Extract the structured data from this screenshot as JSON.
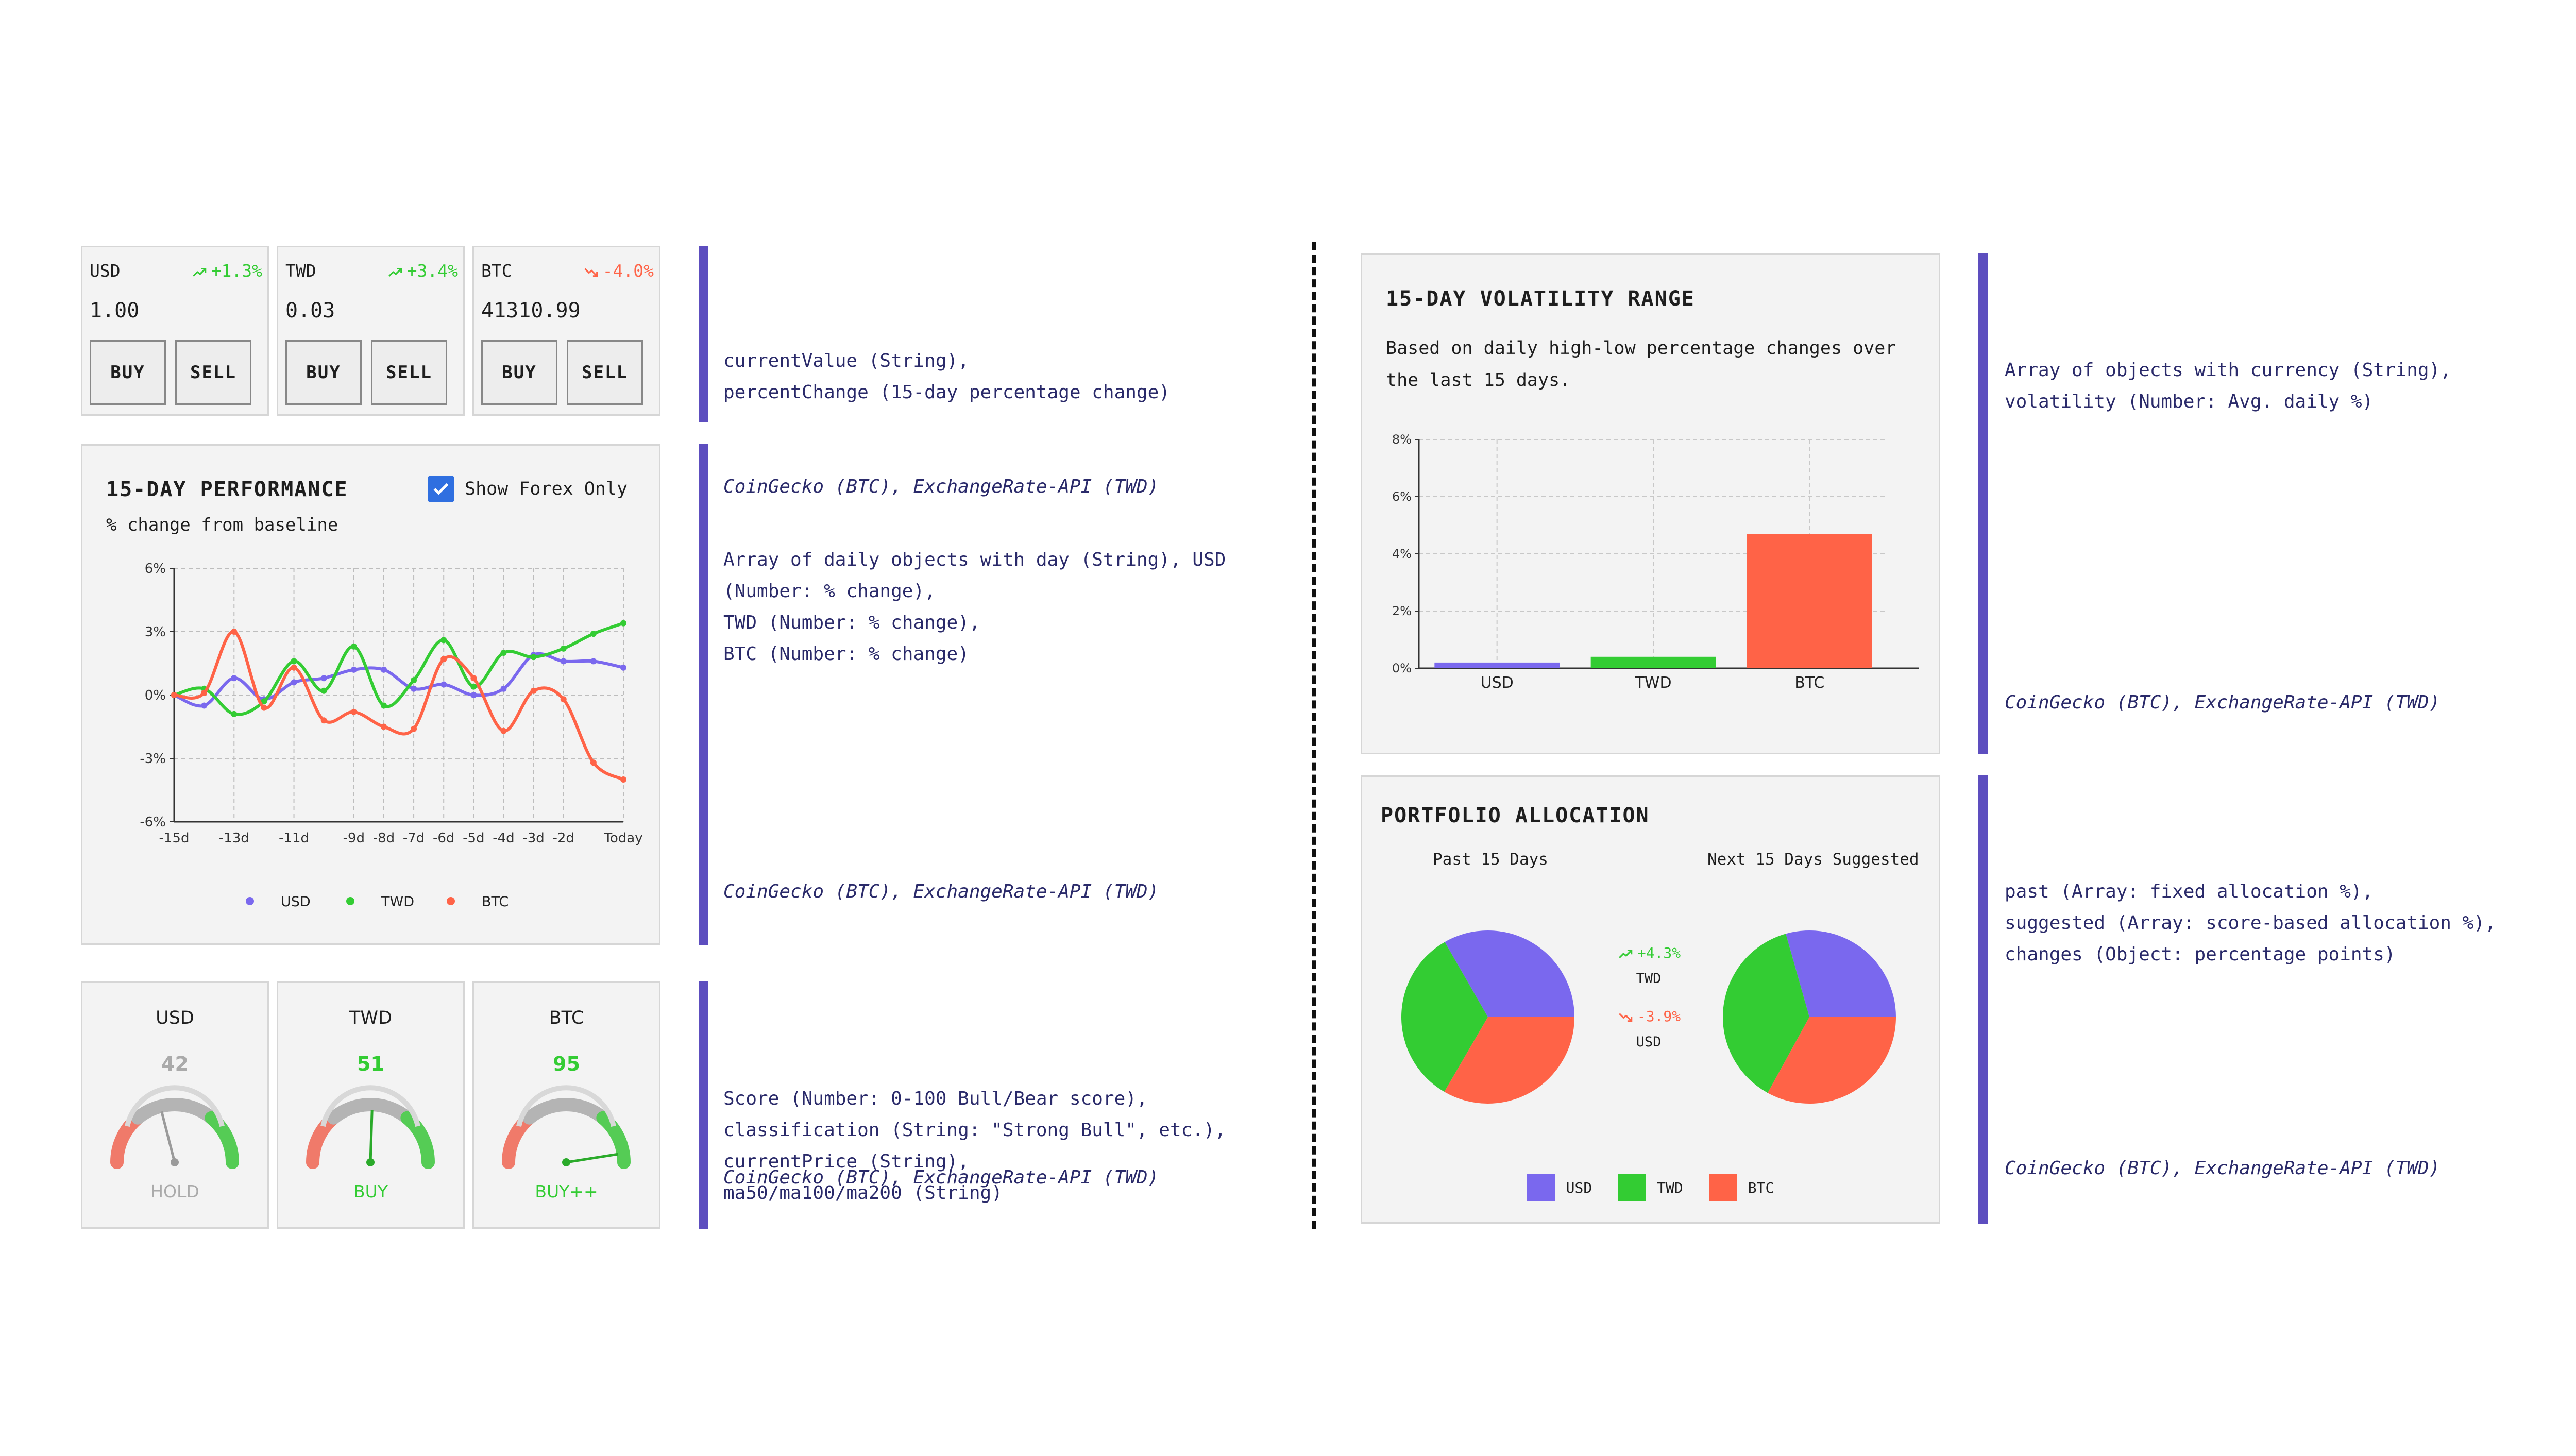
{
  "tickers": [
    {
      "currency": "USD",
      "change": "+1.3%",
      "value": "1.00",
      "trend": "up",
      "buy": "BUY",
      "sell": "SELL"
    },
    {
      "currency": "TWD",
      "change": "+3.4%",
      "value": "0.03",
      "trend": "up",
      "buy": "BUY",
      "sell": "SELL"
    },
    {
      "currency": "BTC",
      "change": "-4.0%",
      "value": "41310.99",
      "trend": "down",
      "buy": "BUY",
      "sell": "SELL"
    }
  ],
  "colors": {
    "usd": "#7a68ee",
    "twd": "#33cc33",
    "btc": "#ff6347",
    "up": "#33cc33",
    "down": "#ff6347",
    "accent": "#5d4ebf"
  },
  "notes": {
    "tickers": {
      "lines": "currentValue (String),\npercentChange (15-day percentage change)",
      "source": "CoinGecko (BTC), ExchangeRate-API (TWD)"
    },
    "performance": {
      "lines": "Array of daily objects with day (String), USD\n(Number: % change),\nTWD (Number: % change),\nBTC (Number: % change)",
      "source": "CoinGecko (BTC), ExchangeRate-API (TWD)"
    },
    "gauges": {
      "lines": "Score (Number: 0-100 Bull/Bear score),\nclassification (String: \"Strong Bull\", etc.),\ncurrentPrice (String),\nma50/ma100/ma200 (String)",
      "source": "CoinGecko (BTC), ExchangeRate-API (TWD)"
    },
    "volatility": {
      "lines": "Array of objects with currency (String),\nvolatility (Number: Avg. daily %)",
      "source": "CoinGecko (BTC), ExchangeRate-API (TWD)"
    },
    "allocation": {
      "lines": "past (Array: fixed allocation %),\nsuggested (Array: score-based allocation %),\nchanges (Object: percentage points)",
      "source": "CoinGecko (BTC), ExchangeRate-API (TWD)"
    }
  },
  "performance": {
    "title": "15-DAY PERFORMANCE",
    "subtitle": "% change from baseline",
    "toggle_label": "Show Forex Only",
    "toggle_checked": true
  },
  "gauges": [
    {
      "currency": "USD",
      "score": "42",
      "classification": "HOLD",
      "color": "#aaaaaa"
    },
    {
      "currency": "TWD",
      "score": "51",
      "classification": "BUY",
      "color": "#33cc33"
    },
    {
      "currency": "BTC",
      "score": "95",
      "classification": "BUY++",
      "color": "#33cc33"
    }
  ],
  "volatility": {
    "title": "15-DAY VOLATILITY RANGE",
    "description": "Based on daily high-low percentage changes over\nthe last 15 days."
  },
  "allocation": {
    "title": "PORTFOLIO ALLOCATION",
    "past_label": "Past 15 Days",
    "next_label": "Next 15 Days Suggested",
    "changes": [
      {
        "value": "+4.3%",
        "currency": "TWD",
        "trend": "up"
      },
      {
        "value": "-3.9%",
        "currency": "USD",
        "trend": "down"
      }
    ],
    "legend": [
      "USD",
      "TWD",
      "BTC"
    ]
  },
  "chart_data": [
    {
      "type": "line",
      "title": "15-DAY PERFORMANCE",
      "x_ticks": [
        "-15d",
        "-13d",
        "-11d",
        "-9d",
        "-8d",
        "-7d",
        "-6d",
        "-5d",
        "-4d",
        "-3d",
        "-2d",
        "Today"
      ],
      "x": [
        -15,
        -14,
        -13,
        -12,
        -11,
        -10,
        -9,
        -8,
        -7,
        -6,
        -5,
        -4,
        -3,
        -2,
        -1,
        0
      ],
      "ylim": [
        -6,
        6
      ],
      "y_ticks": [
        -6,
        -3,
        0,
        3,
        6
      ],
      "y_tick_labels": [
        "-6%",
        "-3%",
        "0%",
        "3%",
        "6%"
      ],
      "grid": true,
      "legend_position": "bottom",
      "series": [
        {
          "name": "USD",
          "values": [
            0,
            -0.5,
            0.8,
            -0.2,
            0.6,
            0.8,
            1.2,
            1.2,
            0.3,
            0.5,
            0.0,
            0.3,
            1.9,
            1.6,
            1.6,
            1.3
          ]
        },
        {
          "name": "TWD",
          "values": [
            0,
            0.3,
            -0.9,
            -0.3,
            1.6,
            0.2,
            2.3,
            -0.5,
            0.7,
            2.6,
            0.4,
            2.0,
            1.8,
            2.2,
            2.9,
            3.4
          ]
        },
        {
          "name": "BTC",
          "values": [
            0,
            0.1,
            3.0,
            -0.6,
            1.3,
            -1.2,
            -0.8,
            -1.5,
            -1.6,
            1.7,
            0.8,
            -1.7,
            0.2,
            -0.2,
            -3.2,
            -4.0
          ]
        }
      ]
    },
    {
      "type": "bar",
      "title": "15-DAY VOLATILITY RANGE",
      "categories": [
        "USD",
        "TWD",
        "BTC"
      ],
      "values": [
        0.2,
        0.4,
        4.7
      ],
      "ylim": [
        0,
        8
      ],
      "y_ticks": [
        0,
        2,
        4,
        6,
        8
      ],
      "y_tick_labels": [
        "0%",
        "2%",
        "4%",
        "6%",
        "8%"
      ],
      "grid": true
    },
    {
      "type": "pie",
      "title": "Past 15 Days",
      "categories": [
        "USD",
        "TWD",
        "BTC"
      ],
      "values": [
        33.3,
        33.3,
        33.4
      ]
    },
    {
      "type": "pie",
      "title": "Next 15 Days Suggested",
      "categories": [
        "USD",
        "TWD",
        "BTC"
      ],
      "values": [
        29.4,
        37.6,
        33.0
      ]
    }
  ]
}
